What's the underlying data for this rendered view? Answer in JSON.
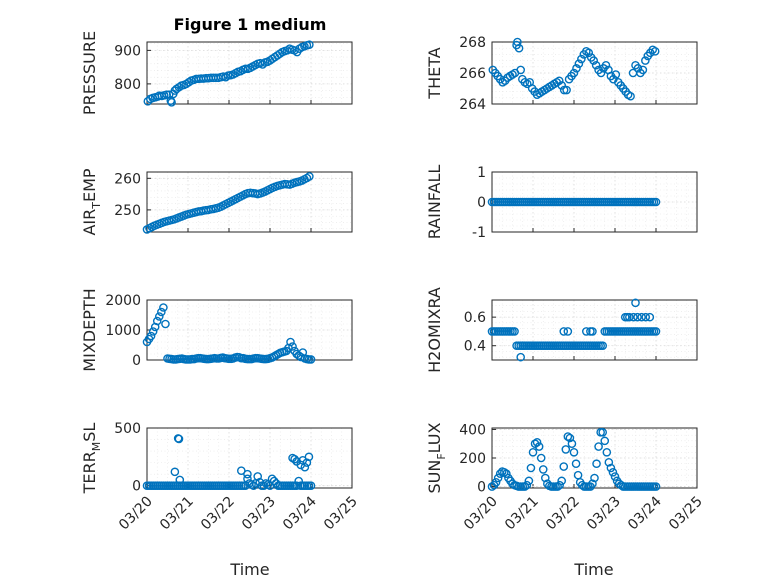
{
  "figure_title": "Figure 1 medium",
  "x_axis_label": "Time",
  "x_tick_labels": [
    "03/20",
    "03/21",
    "03/22",
    "03/23",
    "03/24",
    "03/25"
  ],
  "marker_color": "#0072BD",
  "chart_data": [
    {
      "type": "scatter",
      "ylabel": "PRESSURE",
      "title": "Figure 1 medium",
      "xlim": [
        0,
        5
      ],
      "ylim": [
        740,
        925
      ],
      "yticks": [
        800,
        900
      ],
      "ytick_labels": [
        "800",
        "900"
      ],
      "grid": true,
      "x": [
        0.02,
        0.08,
        0.14,
        0.2,
        0.26,
        0.3,
        0.36,
        0.42,
        0.48,
        0.54,
        0.58,
        0.6,
        0.64,
        0.68,
        0.72,
        0.78,
        0.84,
        0.9,
        0.96,
        1.02,
        1.08,
        1.14,
        1.2,
        1.26,
        1.32,
        1.38,
        1.44,
        1.5,
        1.56,
        1.62,
        1.68,
        1.74,
        1.8,
        1.86,
        1.92,
        1.98,
        2.04,
        2.1,
        2.16,
        2.22,
        2.28,
        2.34,
        2.4,
        2.46,
        2.52,
        2.58,
        2.64,
        2.7,
        2.76,
        2.82,
        2.88,
        2.94,
        3.0,
        3.06,
        3.12,
        3.18,
        3.24,
        3.3,
        3.36,
        3.42,
        3.48,
        3.54,
        3.6,
        3.66,
        3.72,
        3.78,
        3.84,
        3.9,
        3.96
      ],
      "y": [
        748,
        755,
        758,
        760,
        762,
        765,
        764,
        766,
        768,
        768,
        750,
        745,
        770,
        780,
        785,
        790,
        795,
        797,
        800,
        805,
        810,
        812,
        815,
        815,
        816,
        816,
        817,
        817,
        818,
        818,
        818,
        818,
        820,
        822,
        820,
        825,
        826,
        828,
        832,
        836,
        838,
        842,
        845,
        845,
        848,
        852,
        856,
        860,
        862,
        858,
        864,
        866,
        870,
        875,
        880,
        885,
        890,
        895,
        898,
        900,
        905,
        902,
        900,
        895,
        905,
        910,
        912,
        915,
        917
      ]
    },
    {
      "type": "scatter",
      "ylabel": "THETA",
      "xlim": [
        0,
        5
      ],
      "ylim": [
        264,
        268
      ],
      "yticks": [
        264,
        266,
        268
      ],
      "ytick_labels": [
        "264",
        "266",
        "268"
      ],
      "grid": true,
      "x": [
        0.02,
        0.08,
        0.14,
        0.2,
        0.26,
        0.32,
        0.38,
        0.44,
        0.5,
        0.56,
        0.6,
        0.62,
        0.66,
        0.7,
        0.74,
        0.8,
        0.86,
        0.92,
        0.98,
        1.04,
        1.1,
        1.16,
        1.22,
        1.28,
        1.34,
        1.4,
        1.46,
        1.52,
        1.58,
        1.64,
        1.7,
        1.76,
        1.82,
        1.88,
        1.94,
        2.0,
        2.06,
        2.12,
        2.18,
        2.24,
        2.3,
        2.36,
        2.42,
        2.48,
        2.54,
        2.6,
        2.66,
        2.72,
        2.78,
        2.84,
        2.9,
        2.96,
        3.02,
        3.08,
        3.14,
        3.2,
        3.26,
        3.32,
        3.38,
        3.44,
        3.5,
        3.56,
        3.62,
        3.68,
        3.74,
        3.8,
        3.86,
        3.92,
        3.98
      ],
      "y": [
        266.2,
        266.0,
        265.8,
        265.6,
        265.4,
        265.5,
        265.7,
        265.8,
        265.9,
        266.0,
        267.8,
        268.0,
        267.6,
        266.2,
        265.6,
        265.4,
        265.3,
        265.4,
        265.0,
        264.8,
        264.6,
        264.7,
        264.8,
        264.9,
        265.0,
        265.1,
        265.2,
        265.3,
        265.4,
        265.5,
        265.2,
        264.9,
        264.9,
        265.6,
        265.8,
        266.0,
        266.3,
        266.6,
        266.9,
        267.2,
        267.4,
        267.3,
        267.0,
        266.8,
        266.5,
        266.2,
        266.0,
        266.3,
        266.5,
        266.2,
        265.8,
        265.6,
        265.9,
        265.4,
        265.2,
        265.0,
        264.8,
        264.6,
        264.5,
        266.0,
        266.5,
        266.3,
        266.0,
        266.2,
        266.8,
        267.1,
        267.3,
        267.5,
        267.4
      ]
    },
    {
      "type": "scatter",
      "ylabel": "AIR_TEMP",
      "xlim": [
        0,
        5
      ],
      "ylim": [
        243,
        262
      ],
      "yticks": [
        250,
        260
      ],
      "ytick_labels": [
        "250",
        "260"
      ],
      "grid": true,
      "x": [
        0.0,
        0.06,
        0.12,
        0.18,
        0.24,
        0.3,
        0.36,
        0.42,
        0.48,
        0.54,
        0.6,
        0.66,
        0.72,
        0.78,
        0.84,
        0.9,
        0.96,
        1.02,
        1.08,
        1.14,
        1.2,
        1.26,
        1.32,
        1.38,
        1.44,
        1.5,
        1.56,
        1.62,
        1.68,
        1.74,
        1.8,
        1.86,
        1.92,
        1.98,
        2.04,
        2.1,
        2.16,
        2.22,
        2.28,
        2.34,
        2.4,
        2.46,
        2.52,
        2.58,
        2.64,
        2.7,
        2.76,
        2.82,
        2.88,
        2.94,
        3.0,
        3.06,
        3.12,
        3.18,
        3.24,
        3.3,
        3.36,
        3.42,
        3.48,
        3.54,
        3.6,
        3.66,
        3.72,
        3.78,
        3.84,
        3.9,
        3.96
      ],
      "y": [
        243.8,
        244.2,
        244.6,
        245.0,
        245.3,
        245.6,
        245.9,
        246.2,
        246.4,
        246.6,
        246.8,
        247.0,
        247.3,
        247.6,
        247.9,
        248.2,
        248.5,
        248.7,
        248.9,
        249.1,
        249.3,
        249.5,
        249.6,
        249.8,
        249.9,
        250.0,
        250.2,
        250.3,
        250.5,
        250.7,
        251.0,
        251.4,
        251.8,
        252.2,
        252.6,
        253.0,
        253.4,
        253.8,
        254.2,
        254.6,
        255.0,
        255.3,
        255.4,
        255.3,
        255.2,
        255.0,
        255.2,
        255.5,
        255.8,
        256.2,
        256.6,
        257.0,
        257.3,
        257.6,
        257.8,
        258.0,
        258.2,
        258.1,
        258.0,
        258.3,
        258.6,
        258.8,
        259.0,
        259.3,
        259.7,
        260.1,
        260.6
      ]
    },
    {
      "type": "scatter",
      "ylabel": "RAINFALL",
      "xlim": [
        0,
        5
      ],
      "ylim": [
        -1,
        1
      ],
      "yticks": [
        -1,
        0,
        1
      ],
      "ytick_labels": [
        "-1",
        "0",
        "1"
      ],
      "grid": true,
      "x_range": [
        0.0,
        4.0
      ],
      "x_step": 0.05,
      "y_constant": 0
    },
    {
      "type": "scatter",
      "ylabel": "MIXDEPTH",
      "xlim": [
        0,
        5
      ],
      "ylim": [
        0,
        2000
      ],
      "yticks": [
        0,
        1000,
        2000
      ],
      "ytick_labels": [
        "0",
        "1000",
        "2000"
      ],
      "grid": true,
      "x": [
        0.0,
        0.05,
        0.1,
        0.15,
        0.2,
        0.25,
        0.3,
        0.35,
        0.4,
        0.45,
        0.5,
        0.55,
        0.6,
        0.65,
        0.7,
        0.75,
        0.8,
        0.85,
        0.9,
        0.95,
        1.0,
        1.05,
        1.1,
        1.15,
        1.2,
        1.25,
        1.3,
        1.35,
        1.4,
        1.45,
        1.5,
        1.55,
        1.6,
        1.65,
        1.7,
        1.75,
        1.8,
        1.85,
        1.9,
        1.95,
        2.0,
        2.05,
        2.1,
        2.15,
        2.2,
        2.25,
        2.3,
        2.35,
        2.4,
        2.45,
        2.5,
        2.55,
        2.6,
        2.65,
        2.7,
        2.75,
        2.8,
        2.85,
        2.9,
        2.95,
        3.0,
        3.05,
        3.1,
        3.15,
        3.2,
        3.25,
        3.3,
        3.35,
        3.4,
        3.45,
        3.5,
        3.55,
        3.6,
        3.65,
        3.7,
        3.75,
        3.8,
        3.85,
        3.9,
        3.95,
        4.0
      ],
      "y": [
        600,
        700,
        800,
        950,
        1100,
        1300,
        1450,
        1600,
        1750,
        1200,
        50,
        40,
        30,
        20,
        20,
        30,
        40,
        50,
        30,
        20,
        20,
        20,
        30,
        30,
        50,
        60,
        60,
        50,
        40,
        30,
        30,
        40,
        50,
        60,
        50,
        50,
        70,
        80,
        60,
        50,
        40,
        40,
        50,
        80,
        100,
        90,
        60,
        60,
        40,
        30,
        30,
        30,
        50,
        60,
        60,
        50,
        40,
        30,
        30,
        40,
        60,
        80,
        120,
        160,
        200,
        240,
        260,
        280,
        300,
        400,
        600,
        450,
        300,
        200,
        150,
        100,
        250,
        50,
        30,
        20,
        20
      ]
    },
    {
      "type": "scatter",
      "ylabel": "H2OMIXRA",
      "xlim": [
        0,
        5
      ],
      "ylim": [
        0.3,
        0.72
      ],
      "yticks": [
        0.4,
        0.6
      ],
      "ytick_labels": [
        "0.4",
        "0.6"
      ],
      "grid": true,
      "x": [
        0.0,
        0.05,
        0.1,
        0.15,
        0.2,
        0.25,
        0.3,
        0.35,
        0.4,
        0.45,
        0.5,
        0.55,
        0.6,
        0.65,
        0.7,
        0.75,
        0.8,
        0.85,
        0.9,
        0.95,
        1.0,
        1.05,
        1.1,
        1.15,
        1.2,
        1.25,
        1.3,
        1.35,
        1.4,
        1.45,
        1.5,
        1.55,
        1.6,
        1.65,
        1.7,
        1.75,
        1.8,
        1.85,
        1.9,
        1.95,
        2.0,
        2.05,
        2.1,
        2.15,
        2.2,
        2.25,
        2.3,
        2.35,
        2.4,
        2.45,
        2.5,
        2.55,
        2.6,
        2.65,
        2.7,
        2.75,
        2.8,
        2.85,
        2.9,
        2.95,
        3.0,
        3.05,
        3.1,
        3.15,
        3.2,
        3.25,
        3.3,
        3.35,
        3.4,
        3.45,
        3.5,
        3.55,
        3.6,
        3.65,
        3.7,
        3.75,
        3.8,
        3.85,
        3.9,
        3.95,
        4.0,
        0.7,
        0.75,
        1.75,
        1.85,
        2.3,
        2.4,
        2.45,
        3.35,
        3.45,
        3.55,
        3.65,
        3.75,
        3.85,
        3.5,
        3.25,
        3.3
      ],
      "y": [
        0.5,
        0.5,
        0.5,
        0.5,
        0.5,
        0.5,
        0.5,
        0.5,
        0.5,
        0.5,
        0.5,
        0.5,
        0.4,
        0.4,
        0.32,
        0.4,
        0.4,
        0.4,
        0.4,
        0.4,
        0.4,
        0.4,
        0.4,
        0.4,
        0.4,
        0.4,
        0.4,
        0.4,
        0.4,
        0.4,
        0.4,
        0.4,
        0.4,
        0.4,
        0.4,
        0.4,
        0.4,
        0.4,
        0.4,
        0.4,
        0.4,
        0.4,
        0.4,
        0.4,
        0.4,
        0.4,
        0.4,
        0.4,
        0.4,
        0.4,
        0.4,
        0.4,
        0.4,
        0.4,
        0.4,
        0.5,
        0.5,
        0.5,
        0.5,
        0.5,
        0.5,
        0.5,
        0.5,
        0.5,
        0.5,
        0.5,
        0.5,
        0.5,
        0.5,
        0.5,
        0.5,
        0.5,
        0.5,
        0.5,
        0.5,
        0.5,
        0.5,
        0.5,
        0.5,
        0.5,
        0.5,
        0.4,
        0.4,
        0.5,
        0.5,
        0.5,
        0.5,
        0.5,
        0.6,
        0.6,
        0.6,
        0.6,
        0.6,
        0.6,
        0.7,
        0.6,
        0.6
      ]
    },
    {
      "type": "scatter",
      "ylabel": "TERR_MSL",
      "xlim": [
        0,
        5
      ],
      "ylim": [
        -20,
        500
      ],
      "yticks": [
        0,
        500
      ],
      "ytick_labels": [
        "0",
        "500"
      ],
      "grid": true,
      "x": [
        0.0,
        0.05,
        0.1,
        0.15,
        0.2,
        0.25,
        0.3,
        0.35,
        0.4,
        0.45,
        0.5,
        0.55,
        0.6,
        0.65,
        0.7,
        0.75,
        0.8,
        0.85,
        0.9,
        0.95,
        1.0,
        1.05,
        1.1,
        1.15,
        1.2,
        1.25,
        1.3,
        1.35,
        1.4,
        1.45,
        1.5,
        1.55,
        1.6,
        1.65,
        1.7,
        1.75,
        1.8,
        1.85,
        1.9,
        1.95,
        2.0,
        2.05,
        2.1,
        2.15,
        2.2,
        2.25,
        2.3,
        2.35,
        2.4,
        2.45,
        2.5,
        2.55,
        2.6,
        2.65,
        2.7,
        2.75,
        2.8,
        2.85,
        2.9,
        2.95,
        3.0,
        3.05,
        3.1,
        3.15,
        3.2,
        3.25,
        3.3,
        3.35,
        3.4,
        3.45,
        3.5,
        3.55,
        3.6,
        3.65,
        3.7,
        3.75,
        3.8,
        3.85,
        3.9,
        3.95,
        4.0,
        0.76,
        0.78,
        0.68,
        0.8,
        2.3,
        2.45,
        3.55,
        3.6,
        3.65,
        3.8,
        3.85,
        3.9,
        3.95,
        3.75
      ],
      "y": [
        0,
        0,
        0,
        0,
        0,
        0,
        0,
        0,
        0,
        0,
        0,
        0,
        0,
        0,
        0,
        0,
        0,
        0,
        0,
        0,
        0,
        0,
        0,
        0,
        0,
        0,
        0,
        0,
        0,
        0,
        0,
        0,
        0,
        0,
        0,
        0,
        0,
        0,
        0,
        0,
        0,
        0,
        0,
        0,
        0,
        0,
        0,
        0,
        0,
        60,
        20,
        10,
        0,
        20,
        80,
        30,
        0,
        0,
        20,
        10,
        0,
        60,
        40,
        20,
        0,
        0,
        0,
        0,
        0,
        0,
        0,
        0,
        0,
        0,
        40,
        0,
        0,
        0,
        0,
        0,
        0,
        410,
        405,
        120,
        50,
        130,
        100,
        240,
        230,
        210,
        220,
        160,
        200,
        250,
        180
      ]
    },
    {
      "type": "scatter",
      "ylabel": "SUN_FLUX",
      "xlim": [
        0,
        5
      ],
      "ylim": [
        -10,
        410
      ],
      "yticks": [
        0,
        200,
        400
      ],
      "ytick_labels": [
        "0",
        "200",
        "400"
      ],
      "grid": true,
      "x": [
        0.0,
        0.05,
        0.1,
        0.15,
        0.2,
        0.25,
        0.3,
        0.35,
        0.4,
        0.45,
        0.5,
        0.55,
        0.6,
        0.65,
        0.7,
        0.75,
        0.8,
        0.85,
        0.9,
        0.95,
        1.0,
        1.05,
        1.1,
        1.15,
        1.2,
        1.25,
        1.3,
        1.35,
        1.4,
        1.45,
        1.5,
        1.55,
        1.6,
        1.65,
        1.7,
        1.75,
        1.8,
        1.85,
        1.9,
        1.95,
        2.0,
        2.05,
        2.1,
        2.15,
        2.2,
        2.25,
        2.3,
        2.35,
        2.4,
        2.45,
        2.5,
        2.55,
        2.6,
        2.65,
        2.7,
        2.75,
        2.8,
        2.85,
        2.9,
        2.95,
        3.0,
        3.05,
        3.1,
        3.15,
        3.2,
        3.25,
        3.3,
        3.35,
        3.4,
        3.45,
        3.5,
        3.55,
        3.6,
        3.65,
        3.7,
        3.75,
        3.8,
        3.85,
        3.9,
        3.95,
        4.0
      ],
      "y": [
        0,
        10,
        30,
        60,
        90,
        105,
        100,
        90,
        60,
        40,
        20,
        10,
        5,
        0,
        0,
        0,
        0,
        10,
        40,
        130,
        240,
        300,
        310,
        280,
        200,
        120,
        60,
        20,
        5,
        0,
        0,
        0,
        0,
        10,
        40,
        140,
        260,
        350,
        340,
        300,
        240,
        160,
        80,
        30,
        10,
        0,
        0,
        0,
        0,
        20,
        60,
        160,
        280,
        380,
        380,
        320,
        240,
        170,
        130,
        100,
        70,
        40,
        20,
        10,
        0,
        0,
        0,
        0,
        0,
        0,
        0,
        0,
        0,
        0,
        0,
        0,
        0,
        0,
        0,
        0,
        0
      ]
    }
  ]
}
